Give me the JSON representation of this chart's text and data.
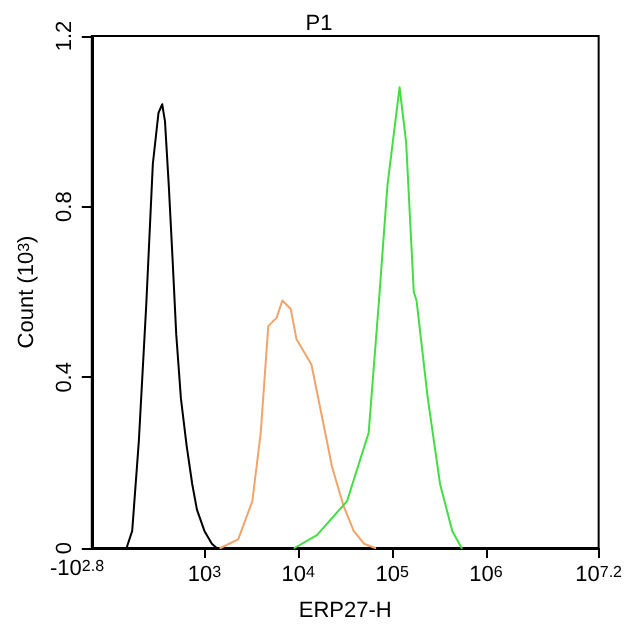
{
  "chart_data": {
    "type": "line",
    "xlabel": "ERP27-H",
    "ylabel": "Count (10$^{3}$)",
    "log": "x",
    "xlim": [
      63.1,
      15848932
    ],
    "xticks": [
      {
        "value": 1000,
        "label": "10$^{3}$"
      },
      {
        "value": 10000,
        "label": "10$^{4}$"
      },
      {
        "value": 100000,
        "label": "10$^{5}$"
      },
      {
        "value": 1000000,
        "label": "10$^{6}$"
      },
      {
        "value": 15848932,
        "label": "10$^{7.2}$"
      }
    ],
    "ylim": [
      0,
      1.2
    ],
    "yticks": [
      0,
      0.4,
      0.8,
      1.2
    ],
    "grid": false,
    "legend": "top",
    "marker": "none",
    "line_style": "solid",
    "annotations": [
      "-10$^{2.8}$"
    ],
    "series": [
      {
        "color": "#000000",
        "x": [
          148,
          170,
          200,
          240,
          282,
          324,
          355,
          380,
          417,
          457,
          501,
          562,
          646,
          741,
          832,
          1000,
          1200,
          1350
        ],
        "values": [
          0,
          0.04,
          0.25,
          0.57,
          0.9,
          1.02,
          1.04,
          1.0,
          0.85,
          0.68,
          0.5,
          0.35,
          0.24,
          0.15,
          0.09,
          0.04,
          0.01,
          0
        ]
      },
      {
        "color": "#f0a46c",
        "x": [
          1480,
          2290,
          3240,
          3980,
          4790,
          5890,
          6760,
          8320,
          9550,
          13800,
          17800,
          22900,
          30200,
          38900,
          50100,
          66100
        ],
        "values": [
          0,
          0.02,
          0.11,
          0.27,
          0.52,
          0.54,
          0.58,
          0.56,
          0.49,
          0.43,
          0.31,
          0.19,
          0.1,
          0.04,
          0.01,
          0
        ]
      },
      {
        "name": "P1",
        "color": "#44dd44",
        "x": [
          9120,
          15800,
          33100,
          56200,
          72400,
          89100,
          120000,
          141000,
          170000,
          182000,
          240000,
          324000,
          437000,
          550000
        ],
        "values": [
          0,
          0.03,
          0.11,
          0.27,
          0.58,
          0.85,
          1.08,
          0.95,
          0.6,
          0.58,
          0.35,
          0.15,
          0.04,
          0
        ]
      }
    ]
  }
}
